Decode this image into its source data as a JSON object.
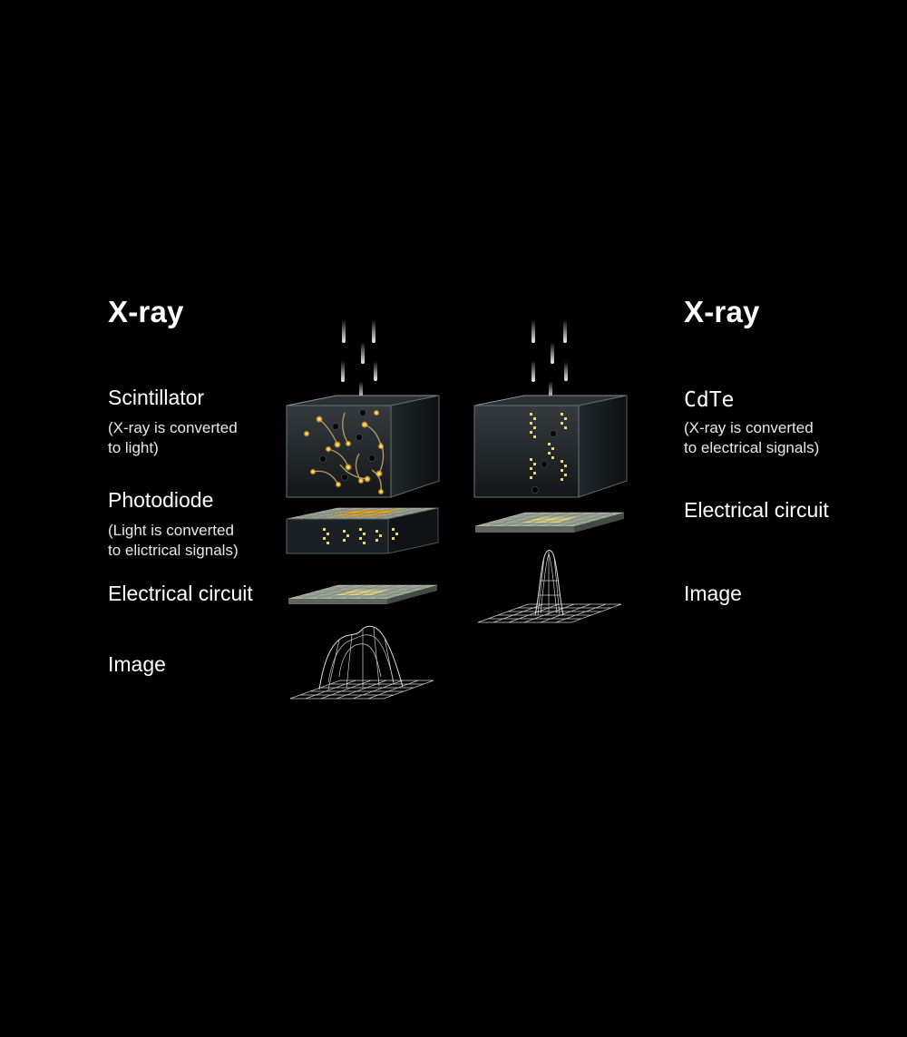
{
  "left": {
    "heading": "X-ray",
    "scintillator": {
      "title": "Scintillator",
      "note_line1": "(X-ray is converted",
      "note_line2": "to light)"
    },
    "photodiode": {
      "title": "Photodiode",
      "note_line1": "(Light is converted",
      "note_line2": "to elictrical signals)"
    },
    "circuit": "Electrical circuit",
    "image": "Image"
  },
  "right": {
    "heading": "X-ray",
    "cdte": {
      "title": "CdTe",
      "note_line1": "(X-ray is converted",
      "note_line2": "to electrical signals)"
    },
    "circuit": "Electrical circuit",
    "image": "Image"
  },
  "colors": {
    "background": "#000000",
    "glow": "#f5b731",
    "plate": "#9aa394",
    "cell_lit": "#e3d58a"
  }
}
